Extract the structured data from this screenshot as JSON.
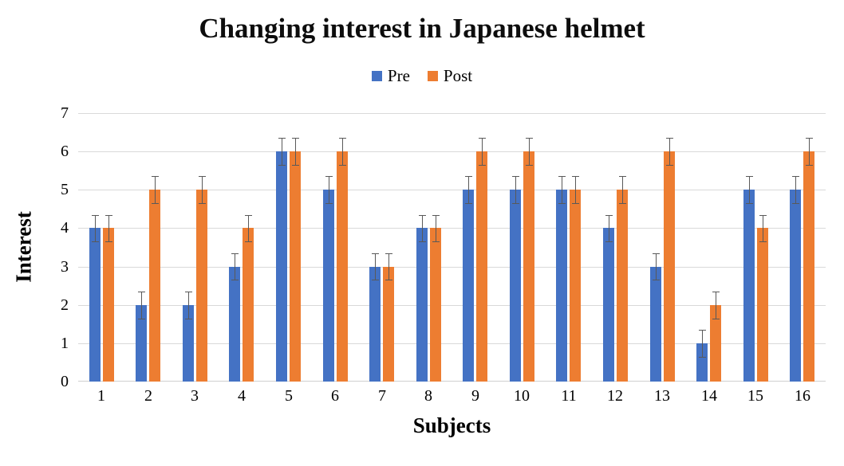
{
  "chart_data": {
    "type": "bar",
    "title": "Changing interest in Japanese helmet",
    "xlabel": "Subjects",
    "ylabel": "Interest",
    "categories": [
      "1",
      "2",
      "3",
      "4",
      "5",
      "6",
      "7",
      "8",
      "9",
      "10",
      "11",
      "12",
      "13",
      "14",
      "15",
      "16"
    ],
    "series": [
      {
        "name": "Pre",
        "color": "#4472C4",
        "values": [
          4,
          2,
          2,
          3,
          6,
          5,
          3,
          4,
          5,
          5,
          5,
          4,
          3,
          1,
          5,
          5
        ],
        "error": 0.35
      },
      {
        "name": "Post",
        "color": "#ED7D31",
        "values": [
          4,
          5,
          5,
          4,
          6,
          6,
          3,
          4,
          6,
          6,
          5,
          5,
          6,
          2,
          4,
          6
        ],
        "error": 0.35
      }
    ],
    "ylim": [
      0,
      7
    ],
    "yticks": [
      0,
      1,
      2,
      3,
      4,
      5,
      6,
      7
    ],
    "grid": true,
    "legend_position": "top",
    "gridline_color": "#d9d9d9",
    "error_bar_color": "#595959",
    "background_color": "#ffffff"
  }
}
